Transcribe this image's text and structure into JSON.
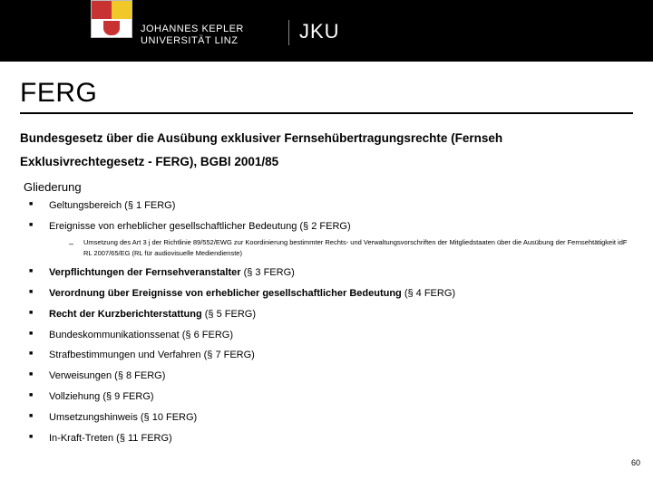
{
  "header": {
    "uni_line1": "JOHANNES KEPLER",
    "uni_line2": "UNIVERSITÄT LINZ",
    "jku": "JKU"
  },
  "title": "FERG",
  "subtitle_line1": "Bundesgesetz über die Ausübung exklusiver Fernsehübertragungsrechte (Fernseh",
  "subtitle_line2": "Exklusivrechtegesetz - FERG), BGBl 2001/85",
  "section_label": "Gliederung",
  "items": [
    {
      "text": "Geltungsbereich (§ 1 FERG)",
      "bold": false
    },
    {
      "text": "Ereignisse von erheblicher gesellschaftlicher Bedeutung (§ 2 FERG)",
      "bold": false,
      "sub": "Umsetzung des Art 3 j der Richtlinie 89/552/EWG zur Koordinierung bestimmter Rechts- und Verwaltungsvorschriften der Mitgliedstaaten über die Ausübung der Fernsehtätigkeit idF RL 2007/65/EG (RL für audiovisuelle Mediendienste)"
    },
    {
      "text": "Verpflichtungen der Fernsehveranstalter",
      "suffix": " (§ 3 FERG)",
      "bold": true
    },
    {
      "text": "Verordnung über Ereignisse von erheblicher gesellschaftlicher Bedeutung",
      "suffix": " (§ 4 FERG)",
      "bold": true
    },
    {
      "text": "Recht der Kurzberichterstattung",
      "suffix": " (§ 5 FERG)",
      "bold": true
    },
    {
      "text": "Bundeskommunikationssenat (§ 6 FERG)",
      "bold": false
    },
    {
      "text": "Strafbestimmungen und Verfahren (§ 7 FERG)",
      "bold": false
    },
    {
      "text": "Verweisungen (§ 8 FERG)",
      "bold": false
    },
    {
      "text": "Vollziehung (§ 9 FERG)",
      "bold": false
    },
    {
      "text": "Umsetzungshinweis (§ 10 FERG)",
      "bold": false
    },
    {
      "text": "In-Kraft-Treten (§ 11 FERG)",
      "bold": false
    }
  ],
  "page_number": "60"
}
